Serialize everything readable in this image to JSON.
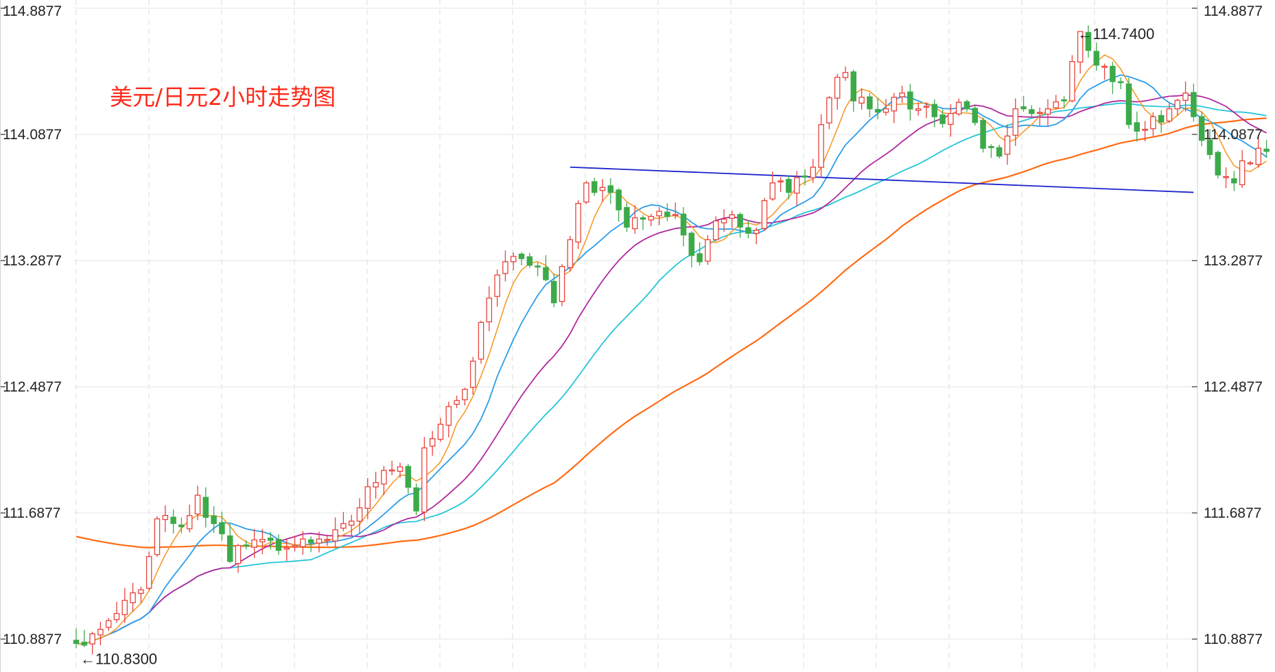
{
  "chart_data": {
    "type": "candlestick",
    "title": "美元/日元2小时走势图",
    "y_ticks": [
      "114.8877",
      "114.0877",
      "113.2877",
      "112.4877",
      "111.6877",
      "110.8877"
    ],
    "ylim": [
      110.72,
      114.9
    ],
    "grid": true,
    "x_count": 138,
    "annotations": {
      "high": {
        "label": "←114.7400",
        "value": 114.74
      },
      "low": {
        "label": "←110.8300",
        "value": 110.83
      }
    },
    "colors": {
      "up": "#e8413a",
      "down": "#3daa4a",
      "ma5": "#f59a2b",
      "ma10": "#2a9de8",
      "ma20": "#b0289e",
      "ma30": "#24c5d9",
      "ma60": "#ff6a12",
      "trendline": "#1a22cc"
    },
    "trendline": {
      "start": [
        61,
        113.88
      ],
      "end": [
        138,
        113.72
      ]
    },
    "anchors": [
      [
        0,
        110.86
      ],
      [
        3,
        110.95
      ],
      [
        5,
        111.05
      ],
      [
        8,
        111.2
      ],
      [
        10,
        111.65
      ],
      [
        13,
        111.6
      ],
      [
        15,
        111.8
      ],
      [
        17,
        111.62
      ],
      [
        19,
        111.38
      ],
      [
        21,
        111.48
      ],
      [
        23,
        111.52
      ],
      [
        25,
        111.45
      ],
      [
        27,
        111.48
      ],
      [
        29,
        111.5
      ],
      [
        31,
        111.52
      ],
      [
        33,
        111.62
      ],
      [
        35,
        111.72
      ],
      [
        37,
        111.88
      ],
      [
        39,
        111.96
      ],
      [
        40,
        111.98
      ],
      [
        41,
        111.85
      ],
      [
        42,
        111.7
      ],
      [
        43,
        112.1
      ],
      [
        45,
        112.25
      ],
      [
        47,
        112.4
      ],
      [
        49,
        112.65
      ],
      [
        51,
        113.05
      ],
      [
        53,
        113.28
      ],
      [
        55,
        113.3
      ],
      [
        57,
        113.25
      ],
      [
        59,
        113.02
      ],
      [
        60,
        113.25
      ],
      [
        61,
        113.42
      ],
      [
        62,
        113.65
      ],
      [
        63,
        113.78
      ],
      [
        64,
        113.72
      ],
      [
        66,
        113.72
      ],
      [
        68,
        113.5
      ],
      [
        70,
        113.55
      ],
      [
        72,
        113.6
      ],
      [
        74,
        113.58
      ],
      [
        75,
        113.45
      ],
      [
        76,
        113.32
      ],
      [
        77,
        113.28
      ],
      [
        78,
        113.42
      ],
      [
        80,
        113.55
      ],
      [
        82,
        113.5
      ],
      [
        84,
        113.48
      ],
      [
        86,
        113.78
      ],
      [
        88,
        113.72
      ],
      [
        90,
        113.82
      ],
      [
        91,
        113.88
      ],
      [
        92,
        114.15
      ],
      [
        93,
        114.32
      ],
      [
        94,
        114.45
      ],
      [
        95,
        114.48
      ],
      [
        96,
        114.3
      ],
      [
        98,
        114.25
      ],
      [
        100,
        114.25
      ],
      [
        102,
        114.35
      ],
      [
        104,
        114.25
      ],
      [
        106,
        114.2
      ],
      [
        108,
        114.22
      ],
      [
        110,
        114.25
      ],
      [
        112,
        114.0
      ],
      [
        114,
        113.95
      ],
      [
        116,
        114.25
      ],
      [
        118,
        114.22
      ],
      [
        120,
        114.25
      ],
      [
        122,
        114.3
      ],
      [
        123,
        114.55
      ],
      [
        124,
        114.74
      ],
      [
        125,
        114.62
      ],
      [
        127,
        114.52
      ],
      [
        129,
        114.42
      ],
      [
        130,
        114.15
      ],
      [
        132,
        114.12
      ],
      [
        133,
        114.2
      ],
      [
        135,
        114.25
      ],
      [
        137,
        114.35
      ],
      [
        138,
        114.2
      ],
      [
        139,
        114.05
      ],
      [
        140,
        113.96
      ],
      [
        142,
        113.82
      ],
      [
        143,
        113.78
      ],
      [
        144,
        113.92
      ],
      [
        146,
        114.0
      ],
      [
        147,
        113.98
      ]
    ]
  }
}
